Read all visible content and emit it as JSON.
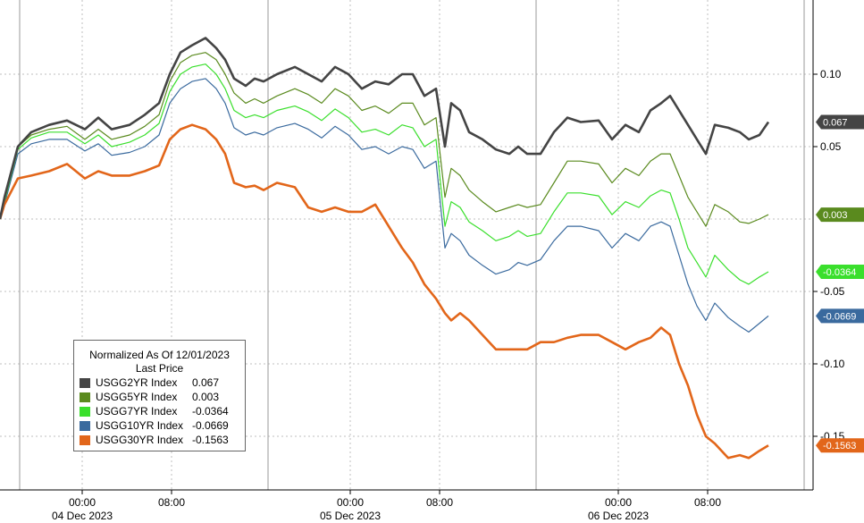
{
  "chart_data": {
    "type": "line",
    "legend": {
      "title": "Normalized As Of 12/01/2023",
      "subtitle": "Last Price",
      "placement": "bottom-left"
    },
    "y_ticks": [
      -0.15,
      -0.1,
      -0.05,
      0.05,
      0.1
    ],
    "y_tick_labels": [
      "-0.15",
      "-0.10",
      "-0.05",
      "0.05",
      "0.10"
    ],
    "ylim": [
      -0.175,
      0.15
    ],
    "x_tick_labels": [
      {
        "x": 0.92,
        "time": "00:00",
        "date": "04 Dec 2023"
      },
      {
        "x": 1.92,
        "time": "08:00",
        "date": ""
      },
      {
        "x": 3.92,
        "time": "00:00",
        "date": "05 Dec 2023"
      },
      {
        "x": 4.92,
        "time": "08:00",
        "date": ""
      },
      {
        "x": 6.92,
        "time": "00:00",
        "date": "06 Dec 2023"
      },
      {
        "x": 7.92,
        "time": "08:00",
        "date": ""
      }
    ],
    "day_dividers": [
      0.22,
      3.0,
      6.0,
      9.0
    ],
    "xlim": [
      0,
      9.15
    ],
    "grid": true,
    "series": [
      {
        "name": "USGG2YR Index",
        "value_label": "0.067",
        "color": "#444444",
        "width": 2.6,
        "x": [
          0,
          0.05,
          0.2,
          0.35,
          0.55,
          0.75,
          0.95,
          1.1,
          1.25,
          1.45,
          1.62,
          1.78,
          1.9,
          2.02,
          2.15,
          2.3,
          2.42,
          2.52,
          2.62,
          2.75,
          2.85,
          2.95,
          3.1,
          3.3,
          3.45,
          3.6,
          3.75,
          3.9,
          4.05,
          4.2,
          4.35,
          4.5,
          4.62,
          4.75,
          4.88,
          4.98,
          5.05,
          5.15,
          5.25,
          5.4,
          5.55,
          5.7,
          5.8,
          5.9,
          6.05,
          6.2,
          6.35,
          6.5,
          6.7,
          6.85,
          7.0,
          7.15,
          7.28,
          7.4,
          7.5,
          7.6,
          7.7,
          7.8,
          7.9,
          8.0,
          8.15,
          8.28,
          8.38,
          8.5,
          8.6
        ],
        "y": [
          0,
          0.015,
          0.05,
          0.06,
          0.065,
          0.068,
          0.062,
          0.07,
          0.062,
          0.065,
          0.072,
          0.08,
          0.1,
          0.115,
          0.12,
          0.125,
          0.118,
          0.11,
          0.097,
          0.092,
          0.097,
          0.095,
          0.1,
          0.105,
          0.1,
          0.095,
          0.105,
          0.1,
          0.09,
          0.095,
          0.093,
          0.1,
          0.1,
          0.085,
          0.09,
          0.05,
          0.08,
          0.075,
          0.06,
          0.055,
          0.048,
          0.045,
          0.05,
          0.045,
          0.045,
          0.06,
          0.07,
          0.067,
          0.068,
          0.055,
          0.065,
          0.06,
          0.075,
          0.08,
          0.085,
          0.075,
          0.065,
          0.055,
          0.045,
          0.065,
          0.063,
          0.06,
          0.055,
          0.058,
          0.067
        ]
      },
      {
        "name": "USGG5YR Index",
        "value_label": "0.003",
        "color": "#5a8a1e",
        "width": 1.2,
        "x": [
          0,
          0.05,
          0.2,
          0.35,
          0.55,
          0.75,
          0.95,
          1.1,
          1.25,
          1.45,
          1.62,
          1.78,
          1.9,
          2.02,
          2.15,
          2.3,
          2.42,
          2.52,
          2.62,
          2.75,
          2.85,
          2.95,
          3.1,
          3.3,
          3.45,
          3.6,
          3.75,
          3.9,
          4.05,
          4.2,
          4.35,
          4.5,
          4.62,
          4.75,
          4.88,
          4.98,
          5.05,
          5.15,
          5.25,
          5.4,
          5.55,
          5.7,
          5.8,
          5.9,
          6.05,
          6.2,
          6.35,
          6.5,
          6.7,
          6.85,
          7.0,
          7.15,
          7.28,
          7.4,
          7.5,
          7.6,
          7.7,
          7.8,
          7.9,
          8.0,
          8.15,
          8.28,
          8.38,
          8.5,
          8.6
        ],
        "y": [
          0,
          0.013,
          0.05,
          0.058,
          0.062,
          0.064,
          0.055,
          0.062,
          0.055,
          0.058,
          0.064,
          0.072,
          0.095,
          0.108,
          0.113,
          0.115,
          0.11,
          0.1,
          0.087,
          0.08,
          0.083,
          0.08,
          0.085,
          0.09,
          0.086,
          0.08,
          0.09,
          0.085,
          0.075,
          0.078,
          0.073,
          0.08,
          0.08,
          0.065,
          0.07,
          0.015,
          0.035,
          0.03,
          0.02,
          0.012,
          0.005,
          0.008,
          0.01,
          0.008,
          0.01,
          0.025,
          0.04,
          0.04,
          0.038,
          0.025,
          0.035,
          0.03,
          0.04,
          0.045,
          0.045,
          0.03,
          0.015,
          0.005,
          -0.005,
          0.01,
          0.005,
          -0.002,
          -0.003,
          0.0,
          0.003
        ]
      },
      {
        "name": "USGG7YR Index",
        "value_label": "-0.0364",
        "color": "#3adf2c",
        "width": 1.2,
        "x": [
          0,
          0.05,
          0.2,
          0.35,
          0.55,
          0.75,
          0.95,
          1.1,
          1.25,
          1.45,
          1.62,
          1.78,
          1.9,
          2.02,
          2.15,
          2.3,
          2.42,
          2.52,
          2.62,
          2.75,
          2.85,
          2.95,
          3.1,
          3.3,
          3.45,
          3.6,
          3.75,
          3.9,
          4.05,
          4.2,
          4.35,
          4.5,
          4.62,
          4.75,
          4.88,
          4.98,
          5.05,
          5.15,
          5.25,
          5.4,
          5.55,
          5.7,
          5.8,
          5.9,
          6.05,
          6.2,
          6.35,
          6.5,
          6.7,
          6.85,
          7.0,
          7.15,
          7.28,
          7.4,
          7.5,
          7.6,
          7.7,
          7.8,
          7.9,
          8.0,
          8.15,
          8.28,
          8.38,
          8.5,
          8.6
        ],
        "y": [
          0,
          0.012,
          0.048,
          0.056,
          0.06,
          0.06,
          0.052,
          0.058,
          0.05,
          0.053,
          0.058,
          0.066,
          0.088,
          0.1,
          0.105,
          0.107,
          0.1,
          0.09,
          0.075,
          0.07,
          0.072,
          0.07,
          0.075,
          0.078,
          0.074,
          0.068,
          0.076,
          0.07,
          0.06,
          0.062,
          0.058,
          0.065,
          0.063,
          0.05,
          0.055,
          -0.005,
          0.012,
          0.008,
          -0.002,
          -0.008,
          -0.015,
          -0.012,
          -0.008,
          -0.012,
          -0.01,
          0.005,
          0.018,
          0.018,
          0.016,
          0.003,
          0.012,
          0.008,
          0.016,
          0.02,
          0.018,
          0.0,
          -0.02,
          -0.03,
          -0.04,
          -0.025,
          -0.035,
          -0.042,
          -0.045,
          -0.04,
          -0.0364
        ]
      },
      {
        "name": "USGG10YR Index",
        "value_label": "-0.0669",
        "color": "#3a6a9e",
        "width": 1.2,
        "x": [
          0,
          0.05,
          0.2,
          0.35,
          0.55,
          0.75,
          0.95,
          1.1,
          1.25,
          1.45,
          1.62,
          1.78,
          1.9,
          2.02,
          2.15,
          2.3,
          2.42,
          2.52,
          2.62,
          2.75,
          2.85,
          2.95,
          3.1,
          3.3,
          3.45,
          3.6,
          3.75,
          3.9,
          4.05,
          4.2,
          4.35,
          4.5,
          4.62,
          4.75,
          4.88,
          4.98,
          5.05,
          5.15,
          5.25,
          5.4,
          5.55,
          5.7,
          5.8,
          5.9,
          6.05,
          6.2,
          6.35,
          6.5,
          6.7,
          6.85,
          7.0,
          7.15,
          7.28,
          7.4,
          7.5,
          7.6,
          7.7,
          7.8,
          7.9,
          8.0,
          8.15,
          8.28,
          8.38,
          8.5,
          8.6
        ],
        "y": [
          0,
          0.01,
          0.045,
          0.052,
          0.055,
          0.055,
          0.047,
          0.052,
          0.044,
          0.046,
          0.05,
          0.058,
          0.08,
          0.09,
          0.095,
          0.097,
          0.09,
          0.08,
          0.063,
          0.058,
          0.06,
          0.058,
          0.063,
          0.066,
          0.062,
          0.056,
          0.064,
          0.058,
          0.048,
          0.05,
          0.045,
          0.05,
          0.048,
          0.035,
          0.04,
          -0.02,
          -0.01,
          -0.015,
          -0.025,
          -0.032,
          -0.038,
          -0.035,
          -0.03,
          -0.032,
          -0.028,
          -0.015,
          -0.005,
          -0.005,
          -0.008,
          -0.02,
          -0.01,
          -0.015,
          -0.005,
          -0.002,
          -0.005,
          -0.025,
          -0.045,
          -0.06,
          -0.07,
          -0.058,
          -0.068,
          -0.074,
          -0.078,
          -0.072,
          -0.0669
        ]
      },
      {
        "name": "USGG30YR Index",
        "value_label": "-0.1563",
        "color": "#e2661a",
        "width": 2.6,
        "x": [
          0,
          0.05,
          0.2,
          0.35,
          0.55,
          0.75,
          0.95,
          1.1,
          1.25,
          1.45,
          1.62,
          1.78,
          1.9,
          2.02,
          2.15,
          2.3,
          2.42,
          2.52,
          2.62,
          2.75,
          2.85,
          2.95,
          3.1,
          3.3,
          3.45,
          3.6,
          3.75,
          3.9,
          4.05,
          4.2,
          4.35,
          4.5,
          4.62,
          4.75,
          4.88,
          4.98,
          5.05,
          5.15,
          5.25,
          5.4,
          5.55,
          5.7,
          5.8,
          5.9,
          6.05,
          6.2,
          6.35,
          6.5,
          6.7,
          6.85,
          7.0,
          7.15,
          7.28,
          7.4,
          7.5,
          7.6,
          7.7,
          7.8,
          7.9,
          8.0,
          8.15,
          8.28,
          8.38,
          8.5,
          8.6
        ],
        "y": [
          0,
          0.01,
          0.028,
          0.03,
          0.033,
          0.038,
          0.028,
          0.033,
          0.03,
          0.03,
          0.033,
          0.037,
          0.055,
          0.062,
          0.065,
          0.062,
          0.055,
          0.045,
          0.025,
          0.022,
          0.023,
          0.02,
          0.025,
          0.022,
          0.008,
          0.005,
          0.008,
          0.005,
          0.005,
          0.01,
          -0.005,
          -0.02,
          -0.03,
          -0.045,
          -0.055,
          -0.065,
          -0.07,
          -0.065,
          -0.07,
          -0.08,
          -0.09,
          -0.09,
          -0.09,
          -0.09,
          -0.085,
          -0.085,
          -0.082,
          -0.08,
          -0.08,
          -0.085,
          -0.09,
          -0.085,
          -0.082,
          -0.075,
          -0.08,
          -0.1,
          -0.115,
          -0.135,
          -0.15,
          -0.155,
          -0.165,
          -0.163,
          -0.165,
          -0.16,
          -0.1563
        ]
      }
    ]
  }
}
